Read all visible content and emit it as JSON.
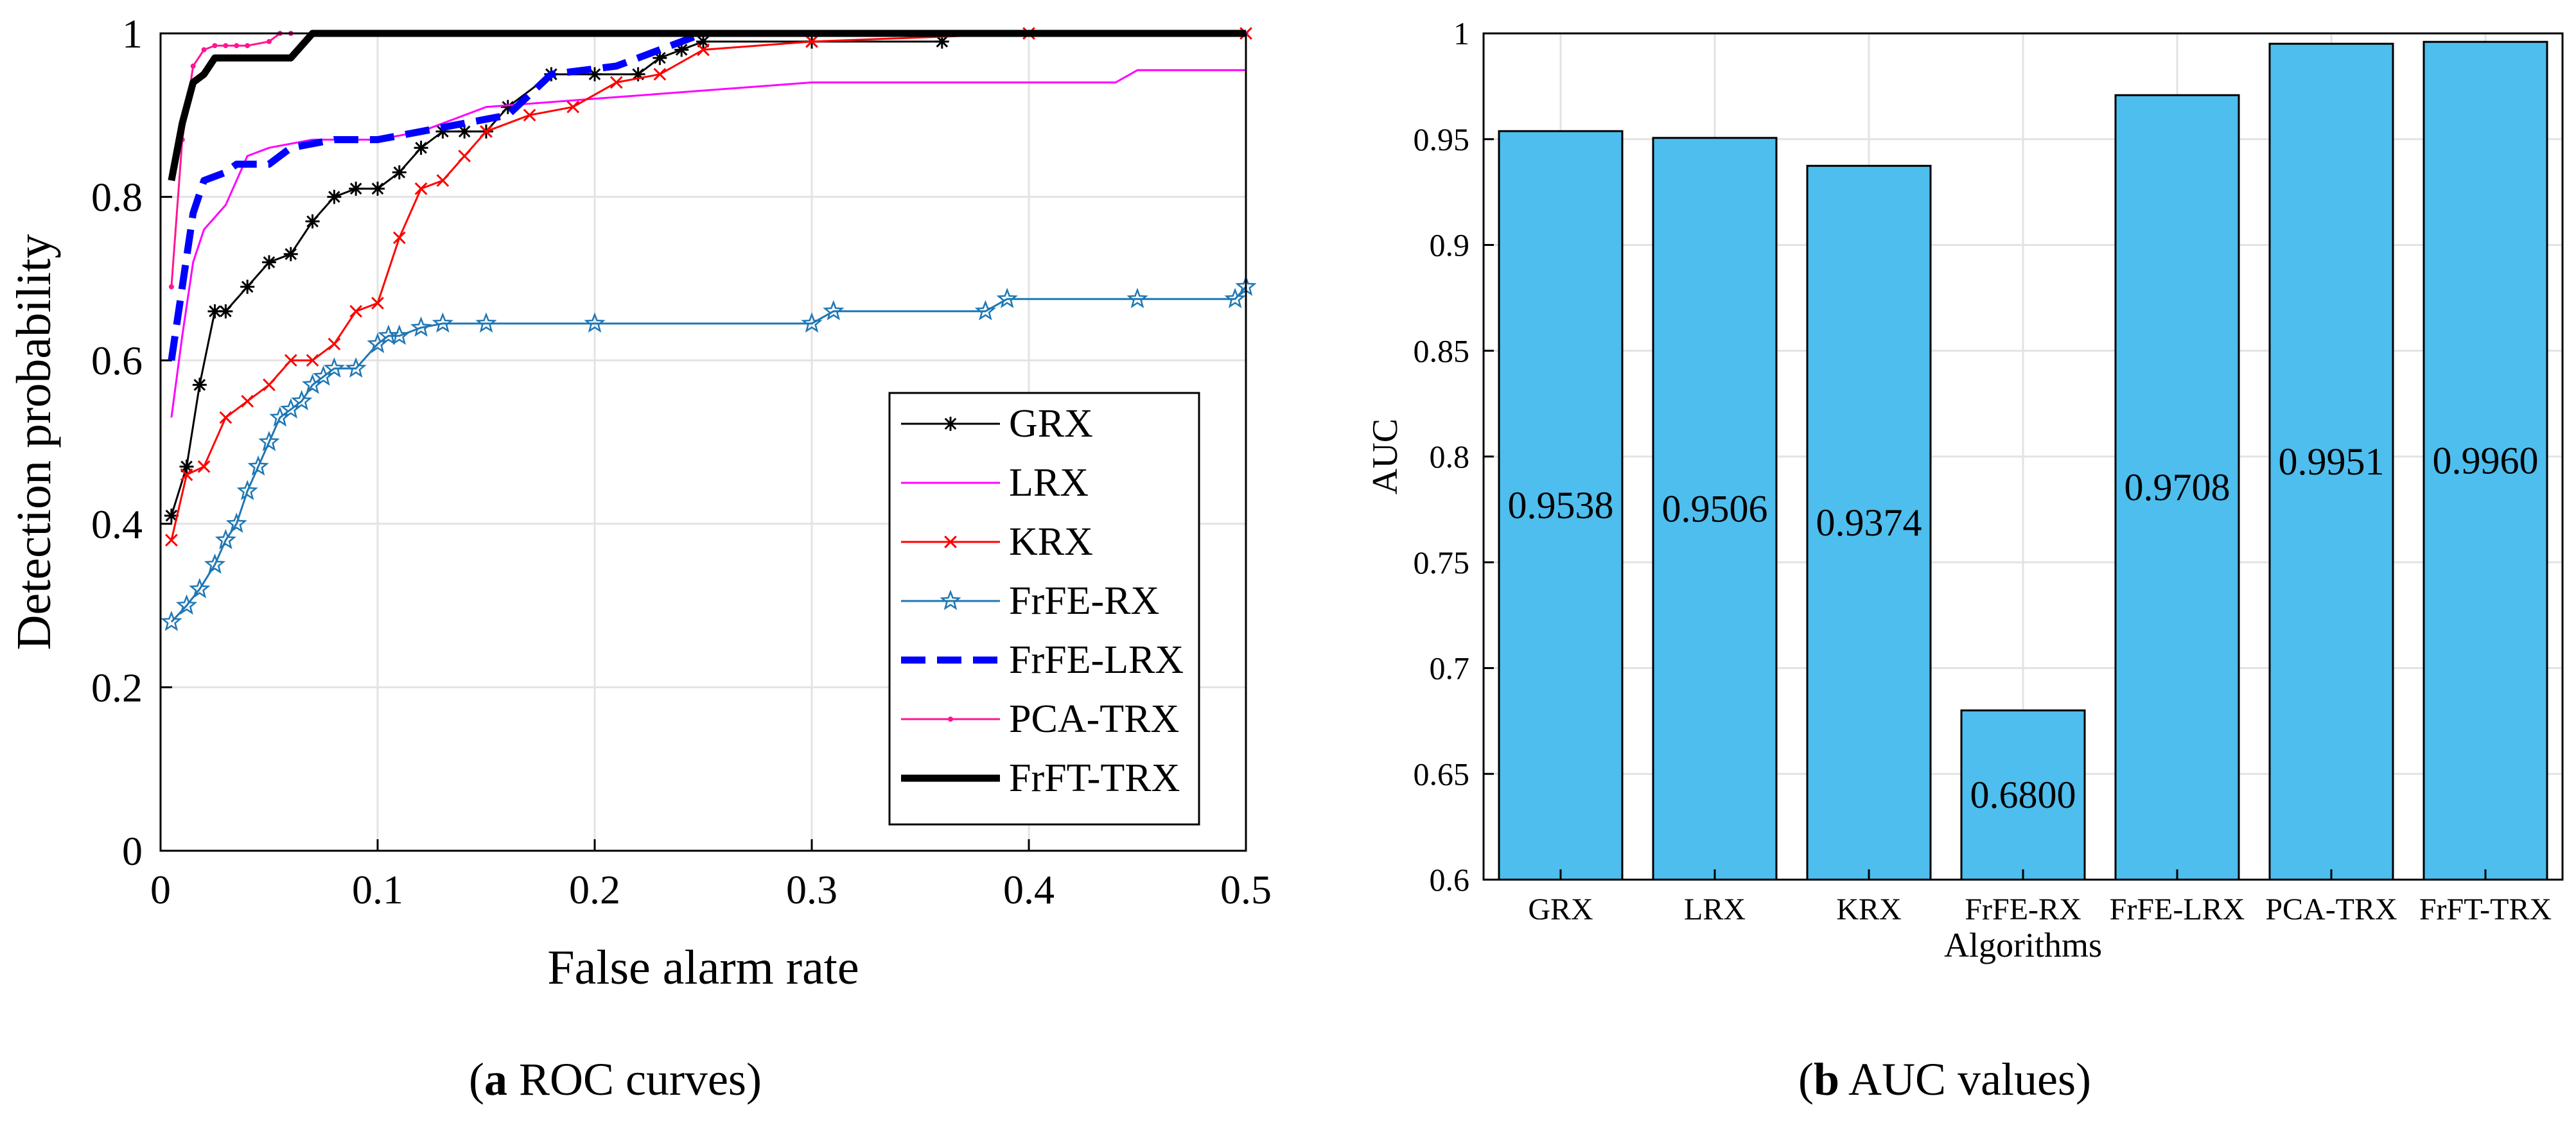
{
  "captions": {
    "a_letter": "a",
    "a_text": " ROC curves",
    "b_letter": "b",
    "b_text": " AUC values"
  },
  "colors": {
    "GRX": "#000000",
    "LRX": "#ff00ff",
    "KRX": "#ff0000",
    "FrFE-RX": "#1f77b4",
    "FrFE-LRX": "#0000ff",
    "PCA-TRX": "#ff1493",
    "FrFT-TRX": "#000000",
    "bar": "#4dbeee"
  },
  "chart_data": [
    {
      "type": "line",
      "xlabel": "False alarm rate",
      "ylabel": "Detection probability",
      "xlim": [
        0,
        0.5
      ],
      "ylim": [
        0,
        1
      ],
      "xticks": [
        0,
        0.1,
        0.2,
        0.3,
        0.4,
        0.5
      ],
      "xtick_labels": [
        "0",
        "0.1",
        "0.2",
        "0.3",
        "0.4",
        "0.5"
      ],
      "yticks": [
        0,
        0.2,
        0.4,
        0.6,
        0.8,
        1
      ],
      "ytick_labels": [
        "0",
        "0.2",
        "0.4",
        "0.6",
        "0.8",
        "1"
      ],
      "grid": true,
      "legend_position": "bottom-right",
      "series": [
        {
          "name": "GRX",
          "marker": "asterisk",
          "x": [
            0.005,
            0.012,
            0.018,
            0.025,
            0.03,
            0.04,
            0.05,
            0.06,
            0.07,
            0.08,
            0.09,
            0.1,
            0.11,
            0.12,
            0.13,
            0.14,
            0.15,
            0.16,
            0.18,
            0.2,
            0.22,
            0.23,
            0.24,
            0.25,
            0.3,
            0.36
          ],
          "y": [
            0.41,
            0.47,
            0.57,
            0.66,
            0.66,
            0.69,
            0.72,
            0.73,
            0.77,
            0.8,
            0.81,
            0.81,
            0.83,
            0.86,
            0.88,
            0.88,
            0.88,
            0.91,
            0.95,
            0.95,
            0.95,
            0.97,
            0.98,
            0.99,
            0.99,
            0.99
          ]
        },
        {
          "name": "LRX",
          "marker": "none",
          "x": [
            0.005,
            0.01,
            0.015,
            0.02,
            0.03,
            0.04,
            0.05,
            0.07,
            0.1,
            0.12,
            0.15,
            0.2,
            0.3,
            0.44,
            0.45,
            0.5
          ],
          "y": [
            0.53,
            0.63,
            0.72,
            0.76,
            0.79,
            0.85,
            0.86,
            0.87,
            0.87,
            0.88,
            0.91,
            0.92,
            0.94,
            0.94,
            0.955,
            0.955
          ]
        },
        {
          "name": "KRX",
          "marker": "x",
          "x": [
            0.005,
            0.012,
            0.02,
            0.03,
            0.04,
            0.05,
            0.06,
            0.07,
            0.08,
            0.09,
            0.1,
            0.11,
            0.12,
            0.13,
            0.14,
            0.15,
            0.17,
            0.19,
            0.21,
            0.23,
            0.25,
            0.3,
            0.4,
            0.5
          ],
          "y": [
            0.38,
            0.46,
            0.47,
            0.53,
            0.55,
            0.57,
            0.6,
            0.6,
            0.62,
            0.66,
            0.67,
            0.75,
            0.81,
            0.82,
            0.85,
            0.88,
            0.9,
            0.91,
            0.94,
            0.95,
            0.98,
            0.99,
            1.0,
            1.0
          ]
        },
        {
          "name": "FrFE-RX",
          "marker": "star",
          "x": [
            0.005,
            0.012,
            0.018,
            0.025,
            0.03,
            0.035,
            0.04,
            0.045,
            0.05,
            0.055,
            0.06,
            0.065,
            0.07,
            0.075,
            0.08,
            0.09,
            0.1,
            0.105,
            0.11,
            0.12,
            0.13,
            0.15,
            0.2,
            0.3,
            0.31,
            0.38,
            0.39,
            0.45,
            0.495,
            0.5
          ],
          "y": [
            0.28,
            0.3,
            0.32,
            0.35,
            0.38,
            0.4,
            0.44,
            0.47,
            0.5,
            0.53,
            0.54,
            0.55,
            0.57,
            0.58,
            0.59,
            0.59,
            0.62,
            0.63,
            0.63,
            0.64,
            0.645,
            0.645,
            0.645,
            0.645,
            0.66,
            0.66,
            0.675,
            0.675,
            0.675,
            0.69
          ]
        },
        {
          "name": "FrFE-LRX",
          "marker": "dashed",
          "x": [
            0.005,
            0.01,
            0.015,
            0.02,
            0.03,
            0.035,
            0.05,
            0.06,
            0.08,
            0.1,
            0.12,
            0.14,
            0.16,
            0.18,
            0.21,
            0.23,
            0.25,
            0.3,
            0.5
          ],
          "y": [
            0.6,
            0.69,
            0.78,
            0.82,
            0.83,
            0.84,
            0.84,
            0.86,
            0.87,
            0.87,
            0.88,
            0.89,
            0.9,
            0.95,
            0.96,
            0.98,
            1.0,
            1.0,
            1.0
          ]
        },
        {
          "name": "PCA-TRX",
          "marker": "dot",
          "x": [
            0.005,
            0.01,
            0.015,
            0.02,
            0.025,
            0.03,
            0.035,
            0.04,
            0.05,
            0.055,
            0.06,
            0.5
          ],
          "y": [
            0.69,
            0.87,
            0.96,
            0.98,
            0.985,
            0.985,
            0.985,
            0.985,
            0.99,
            1.0,
            1.0,
            1.0
          ]
        },
        {
          "name": "FrFT-TRX",
          "marker": "thick",
          "x": [
            0.005,
            0.01,
            0.015,
            0.02,
            0.025,
            0.04,
            0.05,
            0.06,
            0.07,
            0.5
          ],
          "y": [
            0.82,
            0.89,
            0.94,
            0.95,
            0.97,
            0.97,
            0.97,
            0.97,
            1.0,
            1.0
          ]
        }
      ]
    },
    {
      "type": "bar",
      "xlabel": "Algorithms",
      "ylabel": "AUC",
      "ylim": [
        0.6,
        1
      ],
      "yticks": [
        0.6,
        0.65,
        0.7,
        0.75,
        0.8,
        0.85,
        0.9,
        0.95,
        1
      ],
      "ytick_labels": [
        "0.6",
        "0.65",
        "0.7",
        "0.75",
        "0.8",
        "0.85",
        "0.9",
        "0.95",
        "1"
      ],
      "grid": true,
      "categories": [
        "GRX",
        "LRX",
        "KRX",
        "FrFE-RX",
        "FrFE-LRX",
        "PCA-TRX",
        "FrFT-TRX"
      ],
      "values": [
        0.9538,
        0.9506,
        0.9374,
        0.68,
        0.9708,
        0.9951,
        0.996
      ],
      "value_labels": [
        "0.9538",
        "0.9506",
        "0.9374",
        "0.6800",
        "0.9708",
        "0.9951",
        "0.9960"
      ]
    }
  ]
}
